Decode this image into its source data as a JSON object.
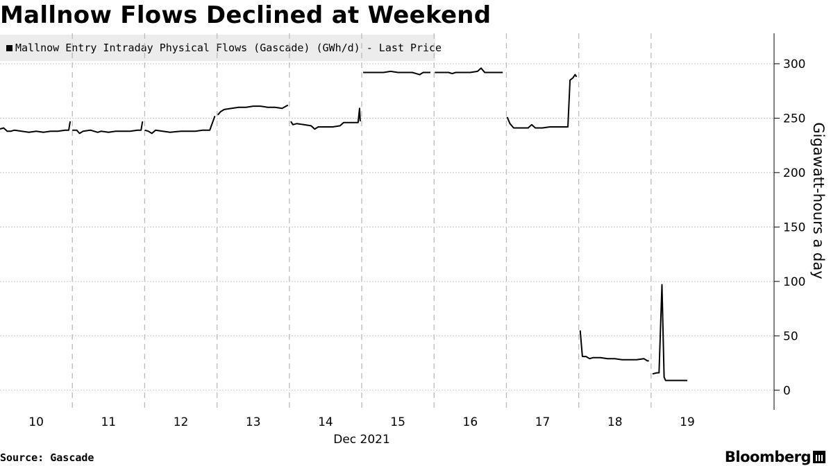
{
  "title": "Mallnow Flows Declined at Weekend",
  "source": "Source: Gascade",
  "brand": "Bloomberg",
  "colors": {
    "line": "#000000",
    "grid": "#c8c8c8",
    "legend_bg": "#ececec"
  },
  "chart_data": {
    "type": "line",
    "title": "Mallnow Flows Declined at Weekend",
    "legend": [
      "Mallnow Entry Intraday Physical Flows (Gascade) (GWh/d) - Last Price"
    ],
    "ylabel": "Gigawatt-hours a day",
    "xlabel": "Dec 2021",
    "ylim": [
      -18,
      328
    ],
    "yticks": [
      0,
      50,
      100,
      150,
      200,
      250,
      300
    ],
    "xlim": [
      9.5,
      20.2
    ],
    "xticks": [
      {
        "x": 10,
        "label": "10"
      },
      {
        "x": 11,
        "label": "11"
      },
      {
        "x": 12,
        "label": "12"
      },
      {
        "x": 13,
        "label": "13"
      },
      {
        "x": 14,
        "label": "14"
      },
      {
        "x": 15,
        "label": "15"
      },
      {
        "x": 16,
        "label": "16"
      },
      {
        "x": 17,
        "label": "17"
      },
      {
        "x": 18,
        "label": "18"
      },
      {
        "x": 19,
        "label": "19"
      }
    ],
    "day_dividers": [
      10.5,
      11.5,
      12.5,
      13.5,
      14.5,
      15.5,
      16.5,
      17.5,
      18.5
    ],
    "grid": true,
    "y_axis_side": "right",
    "legend_placement": "top-left",
    "series": [
      {
        "segments": [
          [
            [
              9.5,
              240
            ],
            [
              9.55,
              241
            ],
            [
              9.6,
              238
            ],
            [
              9.65,
              238
            ],
            [
              9.7,
              239
            ],
            [
              9.8,
              238
            ],
            [
              9.9,
              237
            ],
            [
              10.0,
              238
            ],
            [
              10.1,
              237
            ],
            [
              10.2,
              238
            ],
            [
              10.3,
              238
            ],
            [
              10.4,
              239
            ],
            [
              10.45,
              239
            ],
            [
              10.47,
              247
            ]
          ],
          [
            [
              10.5,
              239
            ],
            [
              10.56,
              239
            ],
            [
              10.6,
              236
            ],
            [
              10.65,
              238
            ],
            [
              10.75,
              239
            ],
            [
              10.85,
              237
            ],
            [
              10.9,
              238
            ],
            [
              11.0,
              237
            ],
            [
              11.1,
              238
            ],
            [
              11.2,
              238
            ],
            [
              11.3,
              238
            ],
            [
              11.4,
              239
            ],
            [
              11.45,
              239
            ],
            [
              11.47,
              247
            ]
          ],
          [
            [
              11.5,
              239
            ],
            [
              11.55,
              238
            ],
            [
              11.6,
              236
            ],
            [
              11.65,
              239
            ],
            [
              11.75,
              238
            ],
            [
              11.85,
              237
            ],
            [
              12.0,
              238
            ],
            [
              12.1,
              238
            ],
            [
              12.2,
              238
            ],
            [
              12.3,
              239
            ],
            [
              12.4,
              239
            ],
            [
              12.47,
              252
            ]
          ],
          [
            [
              12.51,
              253
            ],
            [
              12.55,
              256
            ],
            [
              12.6,
              258
            ],
            [
              12.7,
              259
            ],
            [
              12.8,
              260
            ],
            [
              12.9,
              260
            ],
            [
              13.0,
              261
            ],
            [
              13.1,
              261
            ],
            [
              13.2,
              260
            ],
            [
              13.3,
              260
            ],
            [
              13.4,
              259
            ],
            [
              13.48,
              262
            ]
          ],
          [
            [
              13.52,
              247
            ],
            [
              13.55,
              244
            ],
            [
              13.6,
              245
            ],
            [
              13.7,
              244
            ],
            [
              13.8,
              243
            ],
            [
              13.85,
              240
            ],
            [
              13.9,
              242
            ],
            [
              14.0,
              242
            ],
            [
              14.1,
              242
            ],
            [
              14.2,
              243
            ],
            [
              14.25,
              246
            ],
            [
              14.3,
              246
            ],
            [
              14.4,
              246
            ],
            [
              14.45,
              246
            ],
            [
              14.47,
              259
            ],
            [
              14.48,
              247
            ]
          ],
          [
            [
              14.52,
              292
            ],
            [
              14.6,
              292
            ],
            [
              14.7,
              292
            ],
            [
              14.8,
              292
            ],
            [
              14.9,
              293
            ],
            [
              15.0,
              292
            ],
            [
              15.1,
              292
            ],
            [
              15.2,
              292
            ],
            [
              15.3,
              290
            ],
            [
              15.35,
              292
            ],
            [
              15.45,
              292
            ]
          ],
          [
            [
              15.51,
              292
            ],
            [
              15.6,
              292
            ],
            [
              15.7,
              292
            ],
            [
              15.75,
              291
            ],
            [
              15.8,
              292
            ],
            [
              15.9,
              292
            ],
            [
              16.0,
              292
            ],
            [
              16.1,
              293
            ],
            [
              16.15,
              296
            ],
            [
              16.2,
              292
            ],
            [
              16.3,
              292
            ],
            [
              16.45,
              292
            ]
          ],
          [
            [
              16.51,
              251
            ],
            [
              16.55,
              245
            ],
            [
              16.6,
              241
            ],
            [
              16.7,
              241
            ],
            [
              16.8,
              241
            ],
            [
              16.85,
              244
            ],
            [
              16.9,
              241
            ],
            [
              17.0,
              241
            ],
            [
              17.1,
              242
            ],
            [
              17.2,
              242
            ],
            [
              17.3,
              242
            ],
            [
              17.35,
              242
            ],
            [
              17.38,
              285
            ],
            [
              17.42,
              287
            ],
            [
              17.45,
              290
            ],
            [
              17.47,
              288
            ]
          ],
          [
            [
              17.52,
              55
            ],
            [
              17.55,
              31
            ],
            [
              17.6,
              31
            ],
            [
              17.65,
              29
            ],
            [
              17.7,
              30
            ],
            [
              17.8,
              30
            ],
            [
              17.9,
              29
            ],
            [
              18.0,
              29
            ],
            [
              18.1,
              28
            ],
            [
              18.2,
              28
            ],
            [
              18.3,
              28
            ],
            [
              18.4,
              29
            ],
            [
              18.45,
              27
            ],
            [
              18.47,
              27
            ]
          ],
          [
            [
              18.52,
              15
            ],
            [
              18.58,
              16
            ],
            [
              18.61,
              16
            ],
            [
              18.65,
              97
            ],
            [
              18.68,
              12
            ],
            [
              18.7,
              9
            ],
            [
              18.8,
              9
            ],
            [
              18.9,
              9
            ],
            [
              19.0,
              9
            ]
          ]
        ]
      }
    ]
  }
}
